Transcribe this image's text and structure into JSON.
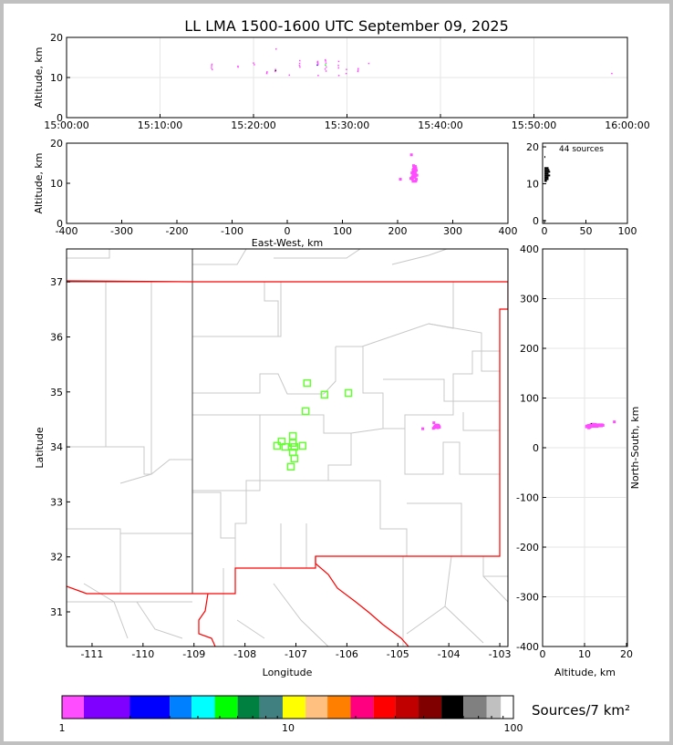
{
  "title": "LL LMA 1500-1600 UTC September 09, 2025",
  "source_count_label": "44 sources",
  "colorbar": {
    "label": "Sources/7 km²",
    "ticks": [
      "1",
      "10",
      "100"
    ],
    "colors": [
      "#ff4dff",
      "#8000ff",
      "#0000ff",
      "#0080ff",
      "#00ffff",
      "#00ff00",
      "#008040",
      "#408080",
      "#ffff00",
      "#ffc080",
      "#ff8000",
      "#ff0080",
      "#ff0000",
      "#c00000",
      "#800000",
      "#000000",
      "#808080",
      "#c0c0c0",
      "#ffffff"
    ]
  },
  "chart_data": [
    {
      "type": "scatter",
      "panel": "altitude-time",
      "ylabel": "Altitude, km",
      "ylim": [
        0,
        20
      ],
      "yticks": [
        "0",
        "10",
        "20"
      ],
      "xlim": [
        "15:00:00",
        "16:00:00"
      ],
      "xticks": [
        "15:00:00",
        "15:10:00",
        "15:20:00",
        "15:30:00",
        "15:40:00",
        "15:50:00",
        "16:00:00"
      ],
      "grid": true
    },
    {
      "type": "scatter",
      "panel": "altitude-east-west",
      "ylabel": "Altitude, km",
      "xlabel": "East-West, km",
      "xlim": [
        -400,
        400
      ],
      "ylim": [
        0,
        20
      ],
      "xticks": [
        "-400",
        "-300",
        "-200",
        "-100",
        "0",
        "100",
        "200",
        "300",
        "400"
      ],
      "yticks": [
        "0",
        "10",
        "20"
      ]
    },
    {
      "type": "histogram",
      "panel": "altitude-histogram",
      "xlim": [
        0,
        100
      ],
      "ylim": [
        0,
        20
      ],
      "xticks": [
        "0",
        "50",
        "100"
      ],
      "yticks": [
        "0",
        "10",
        "20"
      ]
    },
    {
      "type": "scatter",
      "panel": "plan-view",
      "xlabel": "Longitude",
      "ylabel": "Latitude",
      "xlim": [
        -111.5,
        -102.84
      ],
      "ylim": [
        30.37,
        37.6
      ],
      "xticks": [
        "-111",
        "-110",
        "-109",
        "-108",
        "-107",
        "-106",
        "-105",
        "-104",
        "-103"
      ],
      "yticks": [
        "31",
        "32",
        "33",
        "34",
        "35",
        "36",
        "37"
      ],
      "stations": [
        [
          -106.78,
          35.16
        ],
        [
          -106.44,
          34.95
        ],
        [
          -105.97,
          34.98
        ],
        [
          -106.81,
          34.65
        ],
        [
          -107.06,
          34.2
        ],
        [
          -107.28,
          34.1
        ],
        [
          -107.06,
          34.07
        ],
        [
          -107.37,
          34.02
        ],
        [
          -107.21,
          34.0
        ],
        [
          -107.03,
          34.0
        ],
        [
          -106.87,
          34.02
        ],
        [
          -107.06,
          33.9
        ],
        [
          -107.03,
          33.79
        ],
        [
          -107.1,
          33.64
        ]
      ],
      "station_color": "#66ff33",
      "state_boundary_color": "#ff0000"
    },
    {
      "type": "scatter",
      "panel": "north-south-altitude",
      "xlabel": "Altitude, km",
      "ylabel": "North-South, km",
      "xlim": [
        0,
        20
      ],
      "ylim": [
        -400,
        400
      ],
      "xticks": [
        "0",
        "10",
        "20"
      ],
      "yticks": [
        "-400",
        "-300",
        "-200",
        "-100",
        "0",
        "100",
        "200",
        "300",
        "400"
      ]
    }
  ],
  "sources": {
    "fields": [
      "time",
      "altitude_km",
      "east_west_km",
      "north_south_km",
      "color"
    ],
    "points": [
      [
        "15:15:30",
        12.4,
        228,
        44,
        "#ff4dff"
      ],
      [
        "15:15:31",
        12.9,
        229,
        45,
        "#ff4dff"
      ],
      [
        "15:15:33",
        13.3,
        230,
        46,
        "#ff4dff"
      ],
      [
        "15:18:20",
        12.8,
        231,
        44,
        "#ff4dff"
      ],
      [
        "15:20:00",
        13.6,
        232,
        45,
        "#ff4dff"
      ],
      [
        "15:21:25",
        11.0,
        227,
        43,
        "#ff4dff"
      ],
      [
        "15:21:27",
        11.4,
        226,
        42,
        "#ff4dff"
      ],
      [
        "15:22:20",
        11.5,
        229,
        46,
        "#ff4dff"
      ],
      [
        "15:22:22",
        11.8,
        230,
        47,
        "#000000"
      ],
      [
        "15:22:25",
        17.1,
        225,
        52,
        "#ff4dff"
      ],
      [
        "15:23:50",
        10.6,
        233,
        44,
        "#ff4dff"
      ],
      [
        "15:24:55",
        13.0,
        231,
        45,
        "#ff4dff"
      ],
      [
        "15:24:57",
        14.2,
        232,
        46,
        "#ff4dff"
      ],
      [
        "15:24:58",
        12.6,
        230,
        44,
        "#ff4dff"
      ],
      [
        "15:26:50",
        13.1,
        229,
        45,
        "#0000ff"
      ],
      [
        "15:26:52",
        14.0,
        231,
        44,
        "#ff4dff"
      ],
      [
        "15:26:53",
        13.6,
        230,
        46,
        "#ff4dff"
      ],
      [
        "15:26:55",
        10.5,
        228,
        43,
        "#ff4dff"
      ],
      [
        "15:27:40",
        12.1,
        233,
        47,
        "#ff4dff"
      ],
      [
        "15:27:42",
        13.1,
        232,
        45,
        "#00ff00"
      ],
      [
        "15:27:43",
        14.1,
        231,
        46,
        "#ff4dff"
      ],
      [
        "15:27:45",
        13.6,
        229,
        44,
        "#ff4dff"
      ],
      [
        "15:27:46",
        11.6,
        227,
        45,
        "#ff4dff"
      ],
      [
        "15:29:05",
        13.0,
        231,
        43,
        "#ff4dff"
      ],
      [
        "15:29:07",
        14.0,
        230,
        44,
        "#ff4dff"
      ],
      [
        "15:29:08",
        10.5,
        232,
        42,
        "#ff4dff"
      ],
      [
        "15:29:55",
        11.0,
        234,
        45,
        "#ff4dff"
      ],
      [
        "15:29:57",
        12.0,
        233,
        46,
        "#ff4dff"
      ],
      [
        "15:31:10",
        11.5,
        231,
        45,
        "#ff4dff"
      ],
      [
        "15:31:12",
        12.2,
        230,
        47,
        "#ff4dff"
      ],
      [
        "15:32:20",
        13.5,
        229,
        44,
        "#ff4dff"
      ],
      [
        "15:58:20",
        11.0,
        205,
        40,
        "#ff4dff"
      ],
      [
        "15:20:05",
        13.2,
        234,
        44,
        "#ff4dff"
      ],
      [
        "15:15:35",
        12.0,
        235,
        43,
        "#ff4dff"
      ],
      [
        "15:26:54",
        13.3,
        228,
        46,
        "#ff4dff"
      ],
      [
        "15:27:47",
        12.6,
        231,
        47,
        "#ff4dff"
      ],
      [
        "15:29:06",
        12.4,
        232,
        44,
        "#ff4dff"
      ],
      [
        "15:24:56",
        13.5,
        230,
        45,
        "#ff4dff"
      ],
      [
        "15:22:21",
        12.0,
        228,
        45,
        "#ff4dff"
      ],
      [
        "15:26:51",
        13.8,
        233,
        46,
        "#ff4dff"
      ],
      [
        "15:27:41",
        14.4,
        229,
        45,
        "#ff4dff"
      ],
      [
        "15:21:26",
        11.2,
        224,
        41,
        "#ff4dff"
      ],
      [
        "15:31:11",
        11.8,
        232,
        44,
        "#ff4dff"
      ],
      [
        "15:18:21",
        12.6,
        226,
        43,
        "#ff4dff"
      ]
    ]
  }
}
